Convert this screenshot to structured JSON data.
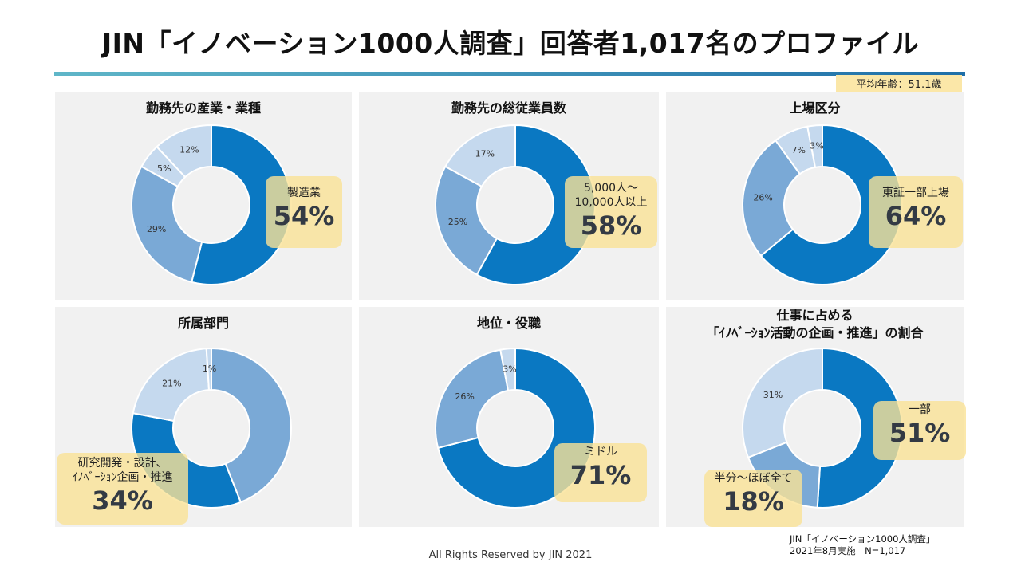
{
  "header": {
    "title": "JIN「イノベーション1000人調査」回答者1,017名のプロファイル"
  },
  "average_age": "平均年齢：51.1歳",
  "footer": {
    "copyright": "All Rights Reserved by JIN 2021"
  },
  "source": {
    "line1": "JIN「イノベーション1000人調査」",
    "line2": "2021年8月実施　N=1,017"
  },
  "colors": {
    "dark": "#0a78c2",
    "mid": "#7aa9d6",
    "light": "#c5d9ee",
    "callout": "#fbe3a0",
    "panel": "#f1f1f1"
  },
  "chart_data": [
    {
      "type": "pie",
      "title": "勤務先の産業・業種",
      "slices": [
        {
          "label": "製造業",
          "value": 54,
          "text": "54%"
        },
        {
          "label": "",
          "value": 29,
          "text": "29%"
        },
        {
          "label": "",
          "value": 5,
          "text": "5%"
        },
        {
          "label": "",
          "value": 12,
          "text": "12%"
        }
      ],
      "callout": {
        "label": "製造業",
        "value": "54%"
      }
    },
    {
      "type": "pie",
      "title": "勤務先の総従業員数",
      "slices": [
        {
          "label": "5,000人～10,000人以上",
          "value": 58,
          "text": "58%"
        },
        {
          "label": "",
          "value": 25,
          "text": "25%"
        },
        {
          "label": "",
          "value": 17,
          "text": "17%"
        }
      ],
      "callout": {
        "label": "5,000人～\n10,000人以上",
        "value": "58%"
      }
    },
    {
      "type": "pie",
      "title": "上場区分",
      "slices": [
        {
          "label": "東証一部上場",
          "value": 64,
          "text": "64%"
        },
        {
          "label": "",
          "value": 26,
          "text": "26%"
        },
        {
          "label": "",
          "value": 7,
          "text": "7%"
        },
        {
          "label": "",
          "value": 3,
          "text": "3%"
        }
      ],
      "callout": {
        "label": "東証一部上場",
        "value": "64%"
      }
    },
    {
      "type": "pie",
      "title": "所属部門",
      "slices": [
        {
          "label": "",
          "value": 44,
          "text": ""
        },
        {
          "label": "研究開発・設計、ｲﾉﾍﾞｰｼｮﾝ企画・推進",
          "value": 34,
          "text": ""
        },
        {
          "label": "",
          "value": 21,
          "text": "21%"
        },
        {
          "label": "",
          "value": 1,
          "text": "1%"
        }
      ],
      "callout": {
        "label": "研究開発・設計、\nｲﾉﾍﾞｰｼｮﾝ企画・推進",
        "value": "34%"
      }
    },
    {
      "type": "pie",
      "title": "地位・役職",
      "slices": [
        {
          "label": "ミドル",
          "value": 71,
          "text": "71%"
        },
        {
          "label": "",
          "value": 26,
          "text": "26%"
        },
        {
          "label": "",
          "value": 3,
          "text": "3%"
        }
      ],
      "callout": {
        "label": "ミドル",
        "value": "71%"
      }
    },
    {
      "type": "pie",
      "title": "仕事に占める\n「ｲﾉﾍﾞｰｼｮﾝ活動の企画・推進」の割合",
      "slices": [
        {
          "label": "一部",
          "value": 51,
          "text": "51%"
        },
        {
          "label": "半分～ほぼ全て",
          "value": 18,
          "text": "18%"
        },
        {
          "label": "",
          "value": 31,
          "text": "31%"
        }
      ],
      "callouts": [
        {
          "label": "一部",
          "value": "51%"
        },
        {
          "label": "半分～ほぼ全て",
          "value": "18%"
        }
      ]
    }
  ]
}
